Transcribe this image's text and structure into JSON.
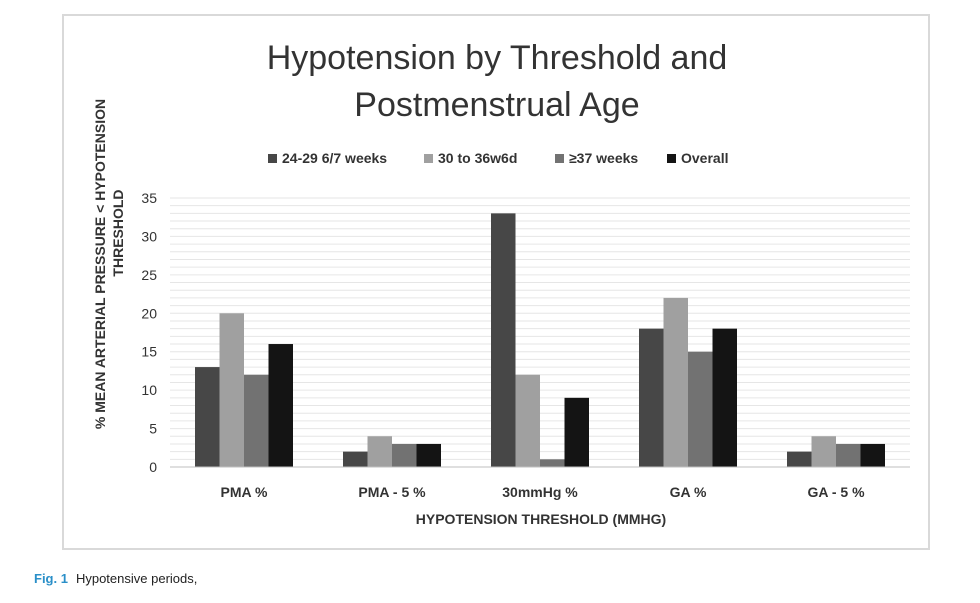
{
  "figure": {
    "caption_label": "Fig. 1",
    "caption_text": "Hypotensive periods,"
  },
  "chart_data": {
    "type": "bar",
    "title_lines": [
      "Hypotension by Threshold and",
      "Postmenstrual Age"
    ],
    "xlabel": "HYPOTENSION THRESHOLD (MMHG)",
    "ylabel_lines": [
      "% MEAN ARTERIAL PRESSURE  < HYPOTENSION",
      "THRESHOLD"
    ],
    "categories": [
      "PMA %",
      "PMA - 5 %",
      "30mmHg %",
      "GA %",
      "GA - 5 %"
    ],
    "ylim": [
      0,
      35
    ],
    "yticks": [
      0,
      5,
      10,
      15,
      20,
      25,
      30,
      35
    ],
    "grid": true,
    "legend_position": "top",
    "series": [
      {
        "name": "24-29 6/7 weeks",
        "color": "#474747",
        "values": [
          13,
          2,
          33,
          18,
          2
        ]
      },
      {
        "name": "30 to 36w6d",
        "color": "#a0a0a0",
        "values": [
          20,
          4,
          12,
          22,
          4
        ]
      },
      {
        "name": "≥37 weeks",
        "color": "#727272",
        "values": [
          12,
          3,
          1,
          15,
          3
        ]
      },
      {
        "name": "Overall",
        "color": "#141414",
        "values": [
          16,
          3,
          9,
          18,
          3
        ]
      }
    ]
  }
}
